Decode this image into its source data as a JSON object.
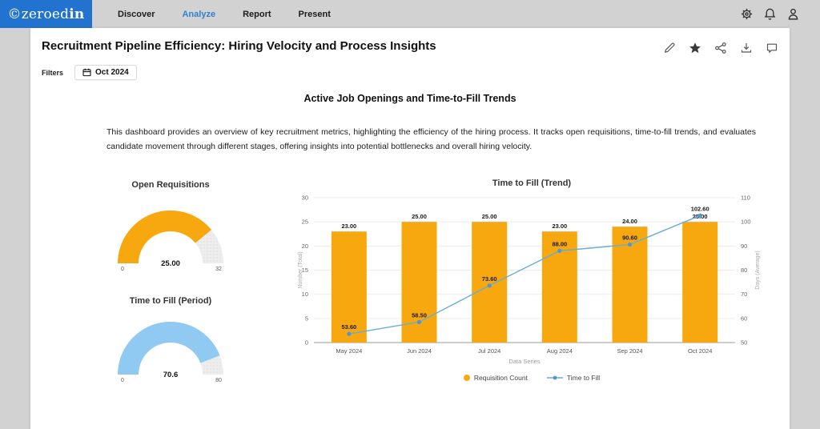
{
  "colors": {
    "logo_blue": "#2273cf",
    "active_nav": "#2f80d4",
    "bar_orange": "#F7A80E",
    "gauge_blue": "#90C9F2",
    "line_blue": "#68ACDC",
    "point_blue": "#4E97D1",
    "page_bg": "#d2d2d2"
  },
  "topbar": {
    "logo_prefix": "©zeroed",
    "logo_suffix": "in",
    "nav": [
      {
        "label": "Discover",
        "active": false
      },
      {
        "label": "Analyze",
        "active": true
      },
      {
        "label": "Report",
        "active": false
      },
      {
        "label": "Present",
        "active": false
      }
    ],
    "icons": [
      "gear-icon",
      "bell-icon",
      "user-icon"
    ]
  },
  "header": {
    "title": "Recruitment Pipeline Efficiency: Hiring Velocity and Process Insights",
    "filters_label": "Filters",
    "date_value": "Oct 2024",
    "toolbar_icons": [
      "edit-pencil-icon",
      "favorite-star-icon",
      "share-icon",
      "download-icon",
      "comment-icon"
    ]
  },
  "main": {
    "heading": "Active Job Openings and Time-to-Fill Trends",
    "description": "This dashboard provides an overview of key recruitment metrics, highlighting the efficiency of the hiring process. It tracks open requisitions, time-to-fill trends, and evaluates candidate movement through different stages, offering insights into potential bottlenecks and overall hiring velocity."
  },
  "chart_data": [
    {
      "type": "gauge",
      "title": "Open Requisitions",
      "value": 25,
      "display_value": "25.00",
      "min": 0,
      "max": 32,
      "min_label": "0",
      "max_label": "32",
      "color": "#F7A80E",
      "track_color": "#ededed"
    },
    {
      "type": "gauge",
      "title": "Time to Fill (Period)",
      "value": 70.6,
      "display_value": "70.6",
      "min": 0,
      "max": 80,
      "min_label": "0",
      "max_label": "80",
      "color": "#90C9F2",
      "track_color": "#ededed"
    },
    {
      "type": "bar+line",
      "title": "Time to Fill (Trend)",
      "categories": [
        "May 2024",
        "Jun 2024",
        "Jul 2024",
        "Aug 2024",
        "Sep 2024",
        "Oct 2024"
      ],
      "xlabel": "Data Series",
      "left_axis": {
        "title": "Number (Total)",
        "min": 0,
        "max": 30,
        "step": 5
      },
      "right_axis": {
        "title": "Days (Average)",
        "min": 50,
        "max": 110,
        "step": 10
      },
      "grid": true,
      "legend_position": "bottom",
      "series": [
        {
          "name": "Requisition Count",
          "type": "bar",
          "axis": "left",
          "color": "#F7A80E",
          "values": [
            23,
            25,
            25,
            23,
            24,
            25
          ],
          "labels": [
            "23.00",
            "25.00",
            "25.00",
            "23.00",
            "24.00",
            "25.00"
          ]
        },
        {
          "name": "Time to Fill",
          "type": "line",
          "axis": "right",
          "color": "#68ACDC",
          "point_color": "#4E97D1",
          "values": [
            53.6,
            58.5,
            73.6,
            88.0,
            90.6,
            102.6
          ],
          "labels": [
            "53.60",
            "58.50",
            "73.60",
            "88.00",
            "90.60",
            "102.60"
          ]
        }
      ]
    }
  ]
}
